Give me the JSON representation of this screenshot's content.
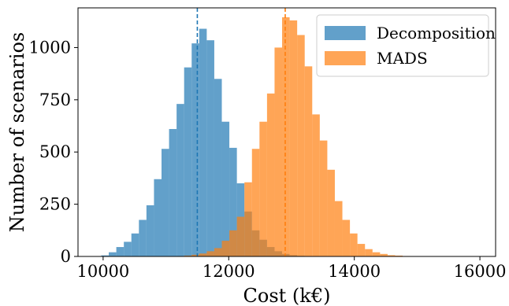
{
  "chart_data": {
    "type": "histogram",
    "xlabel": "Cost (k€)",
    "ylabel": "Number of scenarios",
    "xlim": [
      9600,
      16250
    ],
    "ylim": [
      0,
      1190
    ],
    "xticks": [
      10000,
      12000,
      14000,
      16000
    ],
    "xtick_labels": [
      "10000",
      "12000",
      "14000",
      "16000"
    ],
    "yticks": [
      0,
      250,
      500,
      750,
      1000
    ],
    "ytick_labels": [
      "0",
      "250",
      "500",
      "750",
      "1000"
    ],
    "grid": false,
    "legend": {
      "position": "top-right",
      "entries": [
        "Decomposition",
        "MADS"
      ]
    },
    "series": [
      {
        "name": "Decomposition",
        "color": "#1f77b4",
        "opacity": 0.7,
        "mean": 11500,
        "bins": [
          {
            "x0": 9970,
            "x1": 10090,
            "count": 5
          },
          {
            "x0": 10090,
            "x1": 10210,
            "count": 20
          },
          {
            "x0": 10210,
            "x1": 10330,
            "count": 45
          },
          {
            "x0": 10330,
            "x1": 10450,
            "count": 70
          },
          {
            "x0": 10450,
            "x1": 10570,
            "count": 110
          },
          {
            "x0": 10570,
            "x1": 10690,
            "count": 175
          },
          {
            "x0": 10690,
            "x1": 10810,
            "count": 245
          },
          {
            "x0": 10810,
            "x1": 10930,
            "count": 370
          },
          {
            "x0": 10930,
            "x1": 11050,
            "count": 515
          },
          {
            "x0": 11050,
            "x1": 11170,
            "count": 610
          },
          {
            "x0": 11170,
            "x1": 11290,
            "count": 730
          },
          {
            "x0": 11290,
            "x1": 11410,
            "count": 905
          },
          {
            "x0": 11410,
            "x1": 11530,
            "count": 1020
          },
          {
            "x0": 11530,
            "x1": 11650,
            "count": 1090
          },
          {
            "x0": 11650,
            "x1": 11770,
            "count": 1035
          },
          {
            "x0": 11770,
            "x1": 11890,
            "count": 850
          },
          {
            "x0": 11890,
            "x1": 12010,
            "count": 645
          },
          {
            "x0": 12010,
            "x1": 12130,
            "count": 520
          },
          {
            "x0": 12130,
            "x1": 12250,
            "count": 350
          },
          {
            "x0": 12250,
            "x1": 12370,
            "count": 215
          },
          {
            "x0": 12370,
            "x1": 12490,
            "count": 125
          },
          {
            "x0": 12490,
            "x1": 12610,
            "count": 80
          },
          {
            "x0": 12610,
            "x1": 12730,
            "count": 45
          },
          {
            "x0": 12730,
            "x1": 12850,
            "count": 25
          },
          {
            "x0": 12850,
            "x1": 12970,
            "count": 12
          },
          {
            "x0": 12970,
            "x1": 13090,
            "count": 6
          },
          {
            "x0": 13090,
            "x1": 13210,
            "count": 3
          }
        ]
      },
      {
        "name": "MADS",
        "color": "#ff7f0e",
        "opacity": 0.7,
        "mean": 12900,
        "bins": [
          {
            "x0": 11170,
            "x1": 11290,
            "count": 2
          },
          {
            "x0": 11290,
            "x1": 11410,
            "count": 4
          },
          {
            "x0": 11410,
            "x1": 11530,
            "count": 8
          },
          {
            "x0": 11530,
            "x1": 11650,
            "count": 14
          },
          {
            "x0": 11650,
            "x1": 11770,
            "count": 25
          },
          {
            "x0": 11770,
            "x1": 11890,
            "count": 40
          },
          {
            "x0": 11890,
            "x1": 12010,
            "count": 75
          },
          {
            "x0": 12010,
            "x1": 12130,
            "count": 125
          },
          {
            "x0": 12130,
            "x1": 12250,
            "count": 190
          },
          {
            "x0": 12250,
            "x1": 12370,
            "count": 355
          },
          {
            "x0": 12370,
            "x1": 12490,
            "count": 515
          },
          {
            "x0": 12490,
            "x1": 12610,
            "count": 645
          },
          {
            "x0": 12610,
            "x1": 12730,
            "count": 780
          },
          {
            "x0": 12730,
            "x1": 12850,
            "count": 1000
          },
          {
            "x0": 12850,
            "x1": 12970,
            "count": 1145
          },
          {
            "x0": 12970,
            "x1": 13090,
            "count": 1130
          },
          {
            "x0": 13090,
            "x1": 13210,
            "count": 1060
          },
          {
            "x0": 13210,
            "x1": 13330,
            "count": 910
          },
          {
            "x0": 13330,
            "x1": 13450,
            "count": 680
          },
          {
            "x0": 13450,
            "x1": 13570,
            "count": 555
          },
          {
            "x0": 13570,
            "x1": 13690,
            "count": 415
          },
          {
            "x0": 13690,
            "x1": 13810,
            "count": 265
          },
          {
            "x0": 13810,
            "x1": 13930,
            "count": 175
          },
          {
            "x0": 13930,
            "x1": 14050,
            "count": 110
          },
          {
            "x0": 14050,
            "x1": 14170,
            "count": 60
          },
          {
            "x0": 14170,
            "x1": 14290,
            "count": 35
          },
          {
            "x0": 14290,
            "x1": 14410,
            "count": 20
          },
          {
            "x0": 14410,
            "x1": 14530,
            "count": 12
          },
          {
            "x0": 14530,
            "x1": 14650,
            "count": 6
          },
          {
            "x0": 14650,
            "x1": 14770,
            "count": 4
          },
          {
            "x0": 14770,
            "x1": 14890,
            "count": 2
          }
        ]
      }
    ]
  }
}
